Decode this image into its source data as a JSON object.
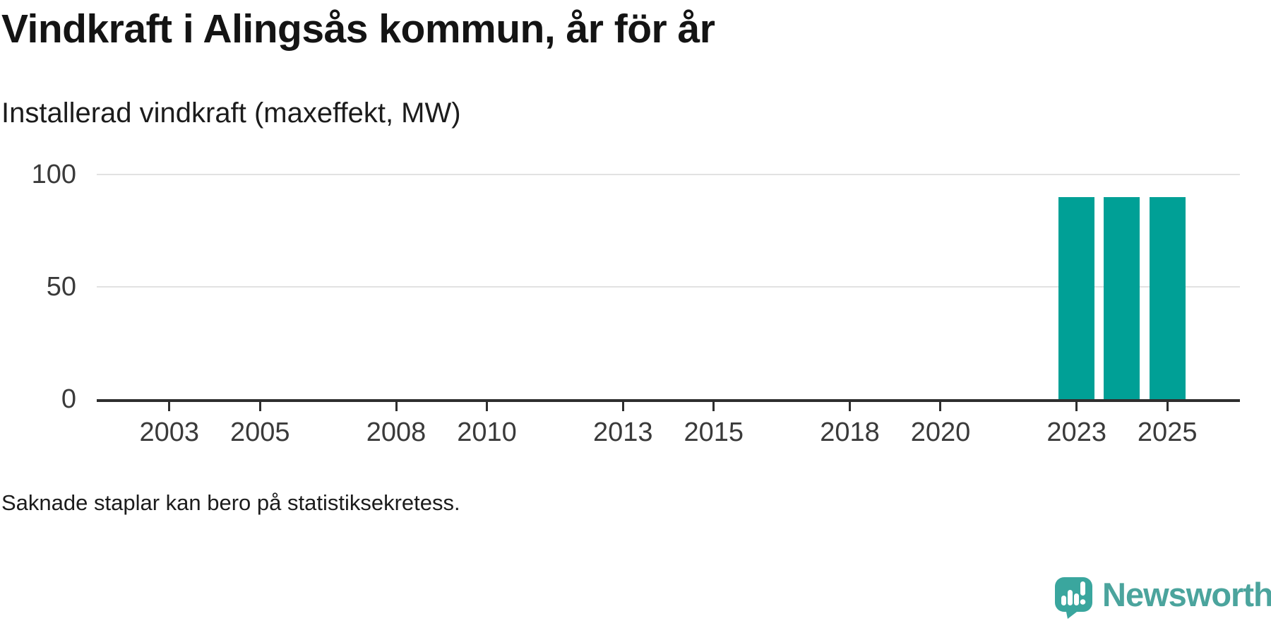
{
  "header": {
    "title": "Vindkraft i Alingsås kommun, år för år",
    "subtitle": "Installerad vindkraft (maxeffekt, MW)"
  },
  "footer": {
    "note": "Saknade staplar kan bero på statistiksekretess."
  },
  "branding": {
    "wordmark": "Newsworthy",
    "logo_icon": "newsworthy-speech-bubble-chart-icon",
    "wordmark_color": "#4ba49d",
    "icon_color": "#3aa69e"
  },
  "chart_data": {
    "type": "bar",
    "title": "Vindkraft i Alingsås kommun, år för år",
    "subtitle": "Installerad vindkraft (maxeffekt, MW)",
    "ylabel": "Installerad vindkraft (maxeffekt, MW)",
    "xlabel": "",
    "x": [
      2023,
      2024,
      2025
    ],
    "values": [
      90,
      90,
      90
    ],
    "series_name": "Installerad vindkraft (MW)",
    "bar_color": "#00a096",
    "x_ticks": [
      2003,
      2005,
      2008,
      2010,
      2013,
      2015,
      2018,
      2020,
      2023,
      2025
    ],
    "y_ticks": [
      0,
      50,
      100
    ],
    "x_domain": [
      2001.4,
      2026.6
    ],
    "y_domain": [
      0,
      100
    ],
    "grid": "horizontal-only",
    "legend": "none",
    "annotation": "Saknade staplar kan bero på statistiksekretess."
  }
}
